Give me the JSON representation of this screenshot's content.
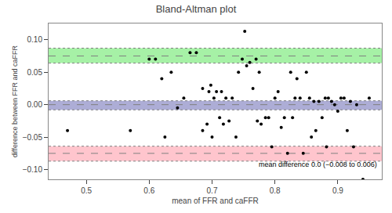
{
  "chart_data": {
    "type": "scatter",
    "title": "Bland-Altman plot",
    "xlabel": "mean of FFR and caFFR",
    "ylabel": "difference between FFR and caFFR",
    "annotation": "mean difference 0.0 (−0.008 to 0.006)",
    "xlim": [
      0.44,
      0.97
    ],
    "ylim": [
      -0.115,
      0.125
    ],
    "xticks": [
      0.5,
      0.6,
      0.7,
      0.8,
      0.9
    ],
    "yticks": [
      {
        "value": -0.1,
        "label": "−0.10"
      },
      {
        "value": -0.05,
        "label": "−0.05"
      },
      {
        "value": 0.0,
        "label": "0.00"
      },
      {
        "value": 0.05,
        "label": "0.05"
      },
      {
        "value": 0.1,
        "label": "0.10"
      }
    ],
    "grid": false,
    "color": "black",
    "marker": "circle",
    "bands": [
      {
        "lower": 0.064,
        "upper": 0.087,
        "color": "#90EE90"
      },
      {
        "lower": -0.087,
        "upper": -0.064,
        "color": "#FFB6C1"
      },
      {
        "lower": -0.008,
        "upper": 0.006,
        "color": "#9999CC"
      }
    ],
    "lines": [
      {
        "value": 0.087,
        "line_style": "dotted",
        "color": "gray"
      },
      {
        "value": 0.064,
        "line_style": "dotted",
        "color": "gray"
      },
      {
        "value": 0.075,
        "line_style": "dashed",
        "color": "gray"
      },
      {
        "value": -0.064,
        "line_style": "dotted",
        "color": "gray"
      },
      {
        "value": -0.087,
        "line_style": "dotted",
        "color": "gray"
      },
      {
        "value": -0.075,
        "line_style": "dashed",
        "color": "gray"
      },
      {
        "value": 0.006,
        "line_style": "dotted",
        "color": "gray"
      },
      {
        "value": -0.008,
        "line_style": "dotted",
        "color": "gray"
      },
      {
        "value": 0.0,
        "line_style": "dashed",
        "color": "gray"
      }
    ],
    "x": [
      0.47,
      0.57,
      0.6,
      0.61,
      0.62,
      0.625,
      0.635,
      0.645,
      0.655,
      0.665,
      0.675,
      0.685,
      0.685,
      0.692,
      0.695,
      0.698,
      0.7,
      0.703,
      0.707,
      0.712,
      0.715,
      0.718,
      0.722,
      0.727,
      0.732,
      0.738,
      0.742,
      0.748,
      0.752,
      0.755,
      0.76,
      0.765,
      0.77,
      0.772,
      0.775,
      0.778,
      0.785,
      0.79,
      0.795,
      0.8,
      0.805,
      0.81,
      0.815,
      0.82,
      0.825,
      0.828,
      0.832,
      0.835,
      0.84,
      0.845,
      0.85,
      0.855,
      0.858,
      0.862,
      0.865,
      0.87,
      0.875,
      0.88,
      0.882,
      0.885,
      0.89,
      0.895,
      0.9,
      0.905,
      0.91,
      0.915,
      0.92,
      0.925,
      0.93,
      0.94,
      0.95
    ],
    "values": [
      -0.04,
      -0.04,
      0.07,
      0.07,
      0.04,
      -0.05,
      0.05,
      -0.005,
      0.01,
      0.08,
      0.08,
      -0.04,
      0.025,
      -0.03,
      0.02,
      0.03,
      -0.05,
      0.01,
      0.02,
      -0.02,
      0.02,
      -0.03,
      0.01,
      -0.025,
      0.01,
      -0.05,
      0.05,
      0.07,
      0.113,
      0.06,
      0.065,
      0.025,
      0.07,
      -0.025,
      0.05,
      -0.03,
      -0.02,
      -0.02,
      -0.065,
      0.01,
      0.02,
      -0.035,
      -0.02,
      -0.075,
      0.05,
      -0.02,
      0.01,
      0.04,
      0.01,
      -0.075,
      0.05,
      0.01,
      -0.05,
      0.005,
      -0.04,
      0.005,
      -0.02,
      0.01,
      -0.065,
      0.01,
      0.005,
      0.0,
      -0.01,
      0.01,
      0.01,
      -0.04,
      0.005,
      -0.065,
      0.0,
      -0.115,
      0.01
    ]
  }
}
